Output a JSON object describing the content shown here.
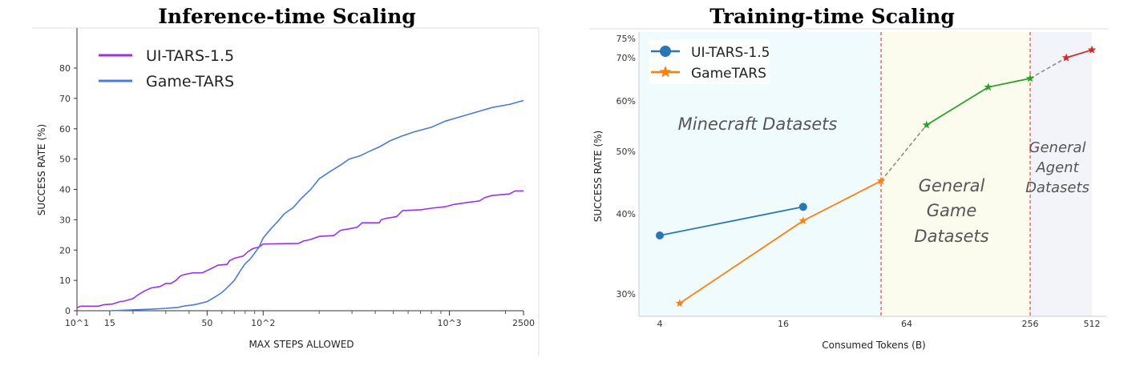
{
  "chart_data": [
    {
      "type": "line",
      "title": "Inference-time Scaling",
      "xlabel": "MAX STEPS ALLOWED",
      "ylabel": "SUCCESS RATE (%)",
      "xscale": "log",
      "xlim": [
        10,
        2500
      ],
      "ylim": [
        0,
        88
      ],
      "xticks": [
        {
          "v": 10,
          "label": "10^1"
        },
        {
          "v": 15,
          "label": "15"
        },
        {
          "v": 50,
          "label": "50"
        },
        {
          "v": 100,
          "label": "10^2"
        },
        {
          "v": 1000,
          "label": "10^3"
        },
        {
          "v": 2500,
          "label": "2500"
        }
      ],
      "yticks": [
        0,
        10,
        20,
        30,
        40,
        50,
        60,
        70,
        80
      ],
      "legend": "top-left",
      "grid": false,
      "series": [
        {
          "name": "UI-TARS-1.5",
          "color": "#9b30f0",
          "points": [
            [
              10,
              1
            ],
            [
              10.5,
              1.5
            ],
            [
              13,
              1.5
            ],
            [
              14,
              2
            ],
            [
              15.5,
              2.2
            ],
            [
              17,
              3
            ],
            [
              18,
              3.2
            ],
            [
              20,
              4
            ],
            [
              21,
              5
            ],
            [
              23,
              6.5
            ],
            [
              25,
              7.5
            ],
            [
              28,
              8
            ],
            [
              30,
              9
            ],
            [
              32,
              9
            ],
            [
              34,
              10
            ],
            [
              36,
              11.5
            ],
            [
              38,
              12
            ],
            [
              42,
              12.5
            ],
            [
              47,
              12.5
            ],
            [
              49,
              13
            ],
            [
              53,
              14
            ],
            [
              57,
              15
            ],
            [
              64,
              15.3
            ],
            [
              66,
              16.5
            ],
            [
              70,
              17.3
            ],
            [
              78,
              18
            ],
            [
              83,
              19.5
            ],
            [
              88,
              20.5
            ],
            [
              95,
              21
            ],
            [
              100,
              22
            ],
            [
              155,
              22.2
            ],
            [
              165,
              23
            ],
            [
              180,
              23.5
            ],
            [
              200,
              24.5
            ],
            [
              240,
              24.8
            ],
            [
              260,
              26.5
            ],
            [
              290,
              27
            ],
            [
              320,
              27.5
            ],
            [
              340,
              29
            ],
            [
              420,
              29
            ],
            [
              430,
              30
            ],
            [
              460,
              30.5
            ],
            [
              520,
              31
            ],
            [
              560,
              33
            ],
            [
              700,
              33.3
            ],
            [
              800,
              33.8
            ],
            [
              950,
              34.3
            ],
            [
              1050,
              35
            ],
            [
              1250,
              35.7
            ],
            [
              1450,
              36.2
            ],
            [
              1550,
              37.3
            ],
            [
              1700,
              38
            ],
            [
              2100,
              38.5
            ],
            [
              2250,
              39.5
            ],
            [
              2500,
              39.5
            ]
          ]
        },
        {
          "name": "Game-TARS",
          "color": "#4a7bd8",
          "points": [
            [
              15,
              0
            ],
            [
              20,
              0.3
            ],
            [
              25,
              0.5
            ],
            [
              30,
              0.8
            ],
            [
              35,
              1.1
            ],
            [
              38,
              1.6
            ],
            [
              42,
              1.9
            ],
            [
              45,
              2.3
            ],
            [
              50,
              3
            ],
            [
              55,
              4.5
            ],
            [
              60,
              6
            ],
            [
              65,
              8
            ],
            [
              70,
              10
            ],
            [
              75,
              13
            ],
            [
              80,
              15.5
            ],
            [
              85,
              17
            ],
            [
              90,
              19
            ],
            [
              95,
              21
            ],
            [
              100,
              24
            ],
            [
              110,
              27
            ],
            [
              120,
              29.5
            ],
            [
              130,
              32
            ],
            [
              145,
              34
            ],
            [
              160,
              37
            ],
            [
              180,
              40
            ],
            [
              200,
              43.5
            ],
            [
              230,
              46
            ],
            [
              260,
              48
            ],
            [
              290,
              50
            ],
            [
              330,
              51
            ],
            [
              370,
              52.5
            ],
            [
              420,
              54
            ],
            [
              480,
              56
            ],
            [
              550,
              57.5
            ],
            [
              650,
              59
            ],
            [
              800,
              60.5
            ],
            [
              950,
              62.5
            ],
            [
              1150,
              64
            ],
            [
              1400,
              65.5
            ],
            [
              1700,
              67
            ],
            [
              2100,
              68
            ],
            [
              2500,
              69.3
            ]
          ]
        }
      ]
    },
    {
      "type": "line",
      "title": "Training-time Scaling",
      "xlabel": "Consumed Tokens (B)",
      "ylabel": "SUCCESS RATE (%)",
      "xscale": "log2",
      "yscale": "log",
      "xticks": [
        4,
        16,
        64,
        256,
        512
      ],
      "yticks": [
        {
          "v": 30,
          "label": "30%"
        },
        {
          "v": 40,
          "label": "40%"
        },
        {
          "v": 50,
          "label": "50%"
        },
        {
          "v": 60,
          "label": "60%"
        },
        {
          "v": 70,
          "label": "70%"
        },
        {
          "v": 75,
          "label": "75%"
        }
      ],
      "legend": "top-left",
      "regions": [
        {
          "label": [
            "Minecraft Datasets"
          ],
          "color": "#f0fbfd"
        },
        {
          "label": [
            "General",
            "Game",
            "Datasets"
          ],
          "color": "#fbfbee"
        },
        {
          "label": [
            "General",
            "Agent",
            "Datasets"
          ],
          "color": "#f3f3fa"
        }
      ],
      "region_boundaries": [
        48,
        256
      ],
      "boundary_color": "#e8453c",
      "series": [
        {
          "name": "UI-TARS-1.5",
          "marker": "circle",
          "color": "#2a77b4",
          "points": [
            [
              4,
              37
            ],
            [
              20,
              41
            ]
          ]
        },
        {
          "name": "GameTARS",
          "marker": "star",
          "color": "#ff7f0e",
          "points": [
            [
              5,
              29
            ],
            [
              20,
              39
            ],
            [
              48,
              45
            ]
          ]
        },
        {
          "marker": "star",
          "color": "#2ca02c",
          "points": [
            [
              80,
              55
            ],
            [
              160,
              63
            ],
            [
              256,
              65
            ]
          ]
        },
        {
          "marker": "star",
          "color": "#d62728",
          "points": [
            [
              384,
              70
            ],
            [
              512,
              72
            ]
          ]
        }
      ],
      "connectors": [
        {
          "color": "#888888",
          "from": [
            48,
            45
          ],
          "to": [
            80,
            55
          ]
        },
        {
          "color": "#888888",
          "from": [
            256,
            65
          ],
          "to": [
            384,
            70
          ]
        }
      ]
    }
  ]
}
